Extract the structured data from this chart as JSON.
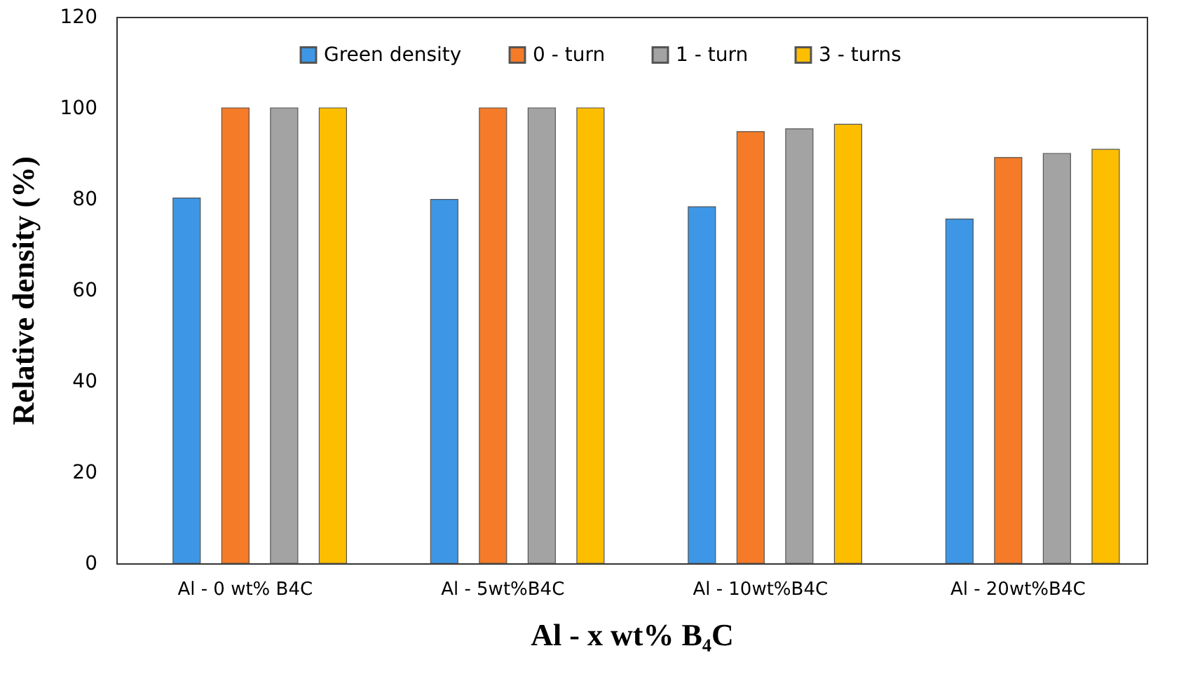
{
  "chart_data": {
    "type": "bar",
    "xlabel": "Al - x wt% B₄C",
    "ylabel": "Relative density (%)",
    "categories": [
      "Al - 0 wt% B4C",
      "Al - 5wt%B4C",
      "Al - 10wt%B4C",
      "Al - 20wt%B4C"
    ],
    "series": [
      {
        "name": "Green density",
        "color": "#3d97e6",
        "values": [
          80.2,
          79.9,
          78.3,
          75.6
        ]
      },
      {
        "name": "0 - turn",
        "color": "#f57b28",
        "values": [
          100,
          100,
          94.8,
          89.1
        ]
      },
      {
        "name": "1 - turn",
        "color": "#a3a3a3",
        "values": [
          100,
          100,
          95.4,
          90.0
        ]
      },
      {
        "name": "3 - turns",
        "color": "#fdbe00",
        "values": [
          100,
          100,
          96.4,
          90.9
        ]
      }
    ],
    "ylim": [
      0,
      120
    ],
    "yticks": [
      0,
      20,
      40,
      60,
      80,
      100,
      120
    ],
    "grid": false,
    "legend": "top"
  }
}
